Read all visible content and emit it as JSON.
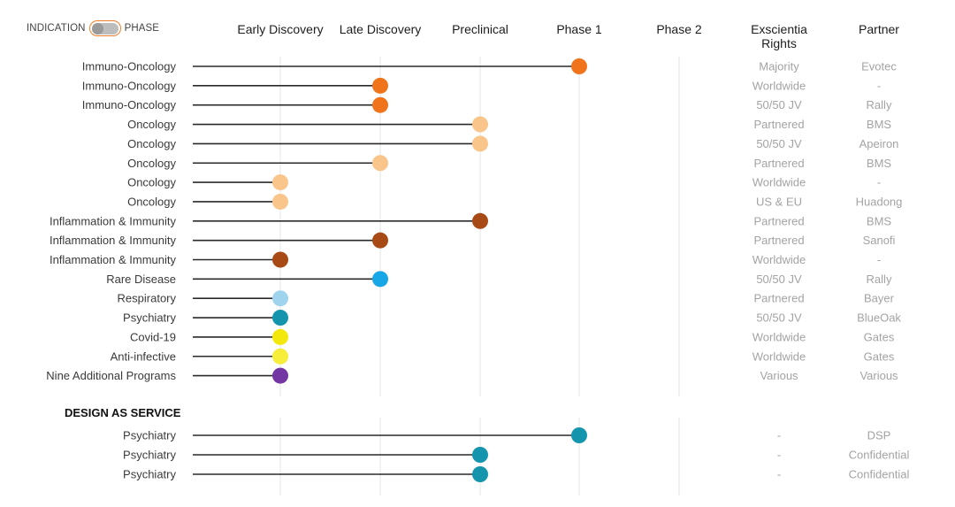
{
  "toggle": {
    "left_label": "INDICATION",
    "right_label": "PHASE"
  },
  "chart_data": {
    "type": "dot",
    "stages": [
      "Early Discovery",
      "Late Discovery",
      "Preclinical",
      "Phase 1",
      "Phase 2"
    ],
    "columns": {
      "rights": [
        "Exscientia",
        "Rights"
      ],
      "partner": "Partner"
    },
    "colors": {
      "io": "#f0741c",
      "oncology": "#f9c58a",
      "inflammation": "#a84a15",
      "rare": "#18a7e6",
      "respiratory": "#9fd3ee",
      "psychiatry": "#1595ad",
      "covid": "#f3e80c",
      "antiinfective": "#f6ee3a",
      "additional": "#7436a2"
    },
    "rows": [
      {
        "indication": "Immuno-Oncology",
        "stage": 4,
        "color": "io",
        "rights": "Majority",
        "partner": "Evotec"
      },
      {
        "indication": "Immuno-Oncology",
        "stage": 2,
        "color": "io",
        "rights": "Worldwide",
        "partner": "-"
      },
      {
        "indication": "Immuno-Oncology",
        "stage": 2,
        "color": "io",
        "rights": "50/50 JV",
        "partner": "Rally"
      },
      {
        "indication": "Oncology",
        "stage": 3,
        "color": "oncology",
        "rights": "Partnered",
        "partner": "BMS"
      },
      {
        "indication": "Oncology",
        "stage": 3,
        "color": "oncology",
        "rights": "50/50 JV",
        "partner": "Apeiron"
      },
      {
        "indication": "Oncology",
        "stage": 2,
        "color": "oncology",
        "rights": "Partnered",
        "partner": "BMS"
      },
      {
        "indication": "Oncology",
        "stage": 1,
        "color": "oncology",
        "rights": "Worldwide",
        "partner": "-"
      },
      {
        "indication": "Oncology",
        "stage": 1,
        "color": "oncology",
        "rights": "US & EU",
        "partner": "Huadong"
      },
      {
        "indication": "Inflammation & Immunity",
        "stage": 3,
        "color": "inflammation",
        "rights": "Partnered",
        "partner": "BMS"
      },
      {
        "indication": "Inflammation & Immunity",
        "stage": 2,
        "color": "inflammation",
        "rights": "Partnered",
        "partner": "Sanofi"
      },
      {
        "indication": "Inflammation & Immunity",
        "stage": 1,
        "color": "inflammation",
        "rights": "Worldwide",
        "partner": "-"
      },
      {
        "indication": "Rare Disease",
        "stage": 2,
        "color": "rare",
        "rights": "50/50 JV",
        "partner": "Rally"
      },
      {
        "indication": "Respiratory",
        "stage": 1,
        "color": "respiratory",
        "rights": "Partnered",
        "partner": "Bayer"
      },
      {
        "indication": "Psychiatry",
        "stage": 1,
        "color": "psychiatry",
        "rights": "50/50 JV",
        "partner": "BlueOak"
      },
      {
        "indication": "Covid-19",
        "stage": 1,
        "color": "covid",
        "rights": "Worldwide",
        "partner": "Gates"
      },
      {
        "indication": "Anti-infective",
        "stage": 1,
        "color": "antiinfective",
        "rights": "Worldwide",
        "partner": "Gates"
      },
      {
        "indication": "Nine Additional Programs",
        "stage": 1,
        "color": "additional",
        "rights": "Various",
        "partner": "Various"
      }
    ],
    "section2_title": "DESIGN AS SERVICE",
    "rows2": [
      {
        "indication": "Psychiatry",
        "stage": 4,
        "color": "psychiatry",
        "rights": "-",
        "partner": "DSP"
      },
      {
        "indication": "Psychiatry",
        "stage": 3,
        "color": "psychiatry",
        "rights": "-",
        "partner": "Confidential"
      },
      {
        "indication": "Psychiatry",
        "stage": 3,
        "color": "psychiatry",
        "rights": "-",
        "partner": "Confidential"
      }
    ]
  }
}
